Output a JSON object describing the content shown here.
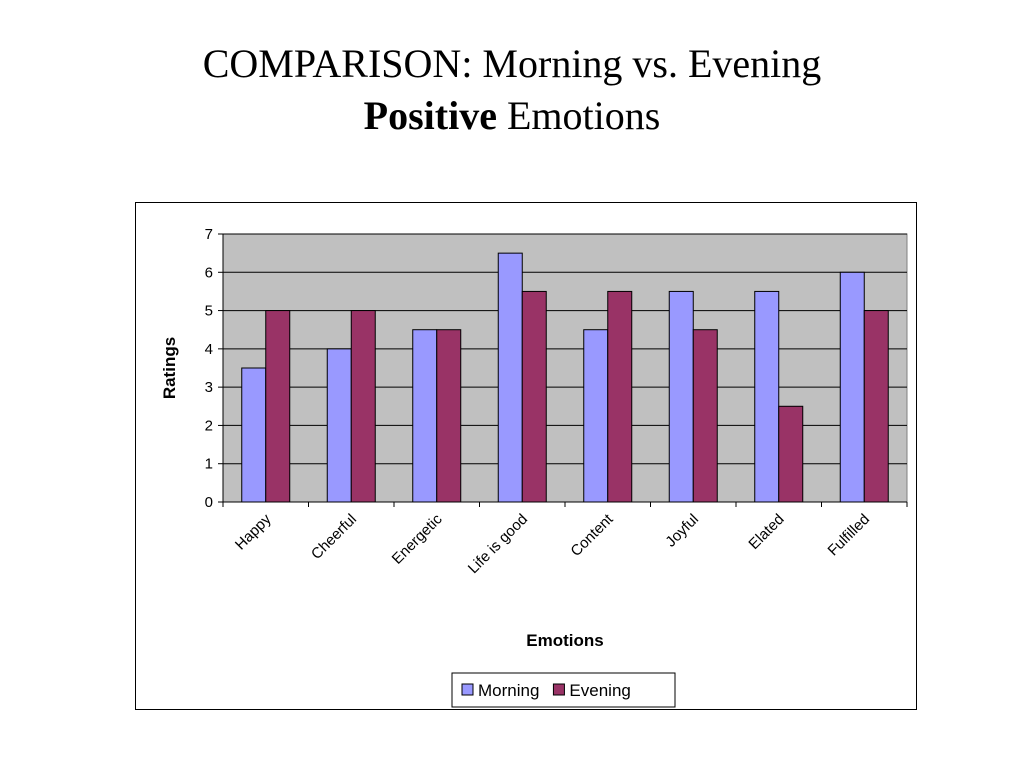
{
  "slide": {
    "title_line1": "COMPARISON: Morning vs. Evening",
    "title_line2_bold": "Positive",
    "title_line2_rest": " Emotions"
  },
  "chart_data": {
    "type": "bar",
    "categories": [
      "Happy",
      "Cheerful",
      "Energetic",
      "Life is good",
      "Content",
      "Joyful",
      "Elated",
      "Fulfilled"
    ],
    "series": [
      {
        "name": "Morning",
        "color": "#9999ff",
        "values": [
          3.5,
          4,
          4.5,
          6.5,
          4.5,
          5.5,
          5.5,
          6
        ]
      },
      {
        "name": "Evening",
        "color": "#993366",
        "values": [
          5,
          5,
          4.5,
          5.5,
          5.5,
          4.5,
          2.5,
          5
        ]
      }
    ],
    "xlabel": "Emotions",
    "ylabel": "Ratings",
    "ylim": [
      0,
      7
    ],
    "yticks": [
      0,
      1,
      2,
      3,
      4,
      5,
      6,
      7
    ],
    "grid": true,
    "plot_background": "#c0c0c0",
    "legend_position": "bottom"
  }
}
